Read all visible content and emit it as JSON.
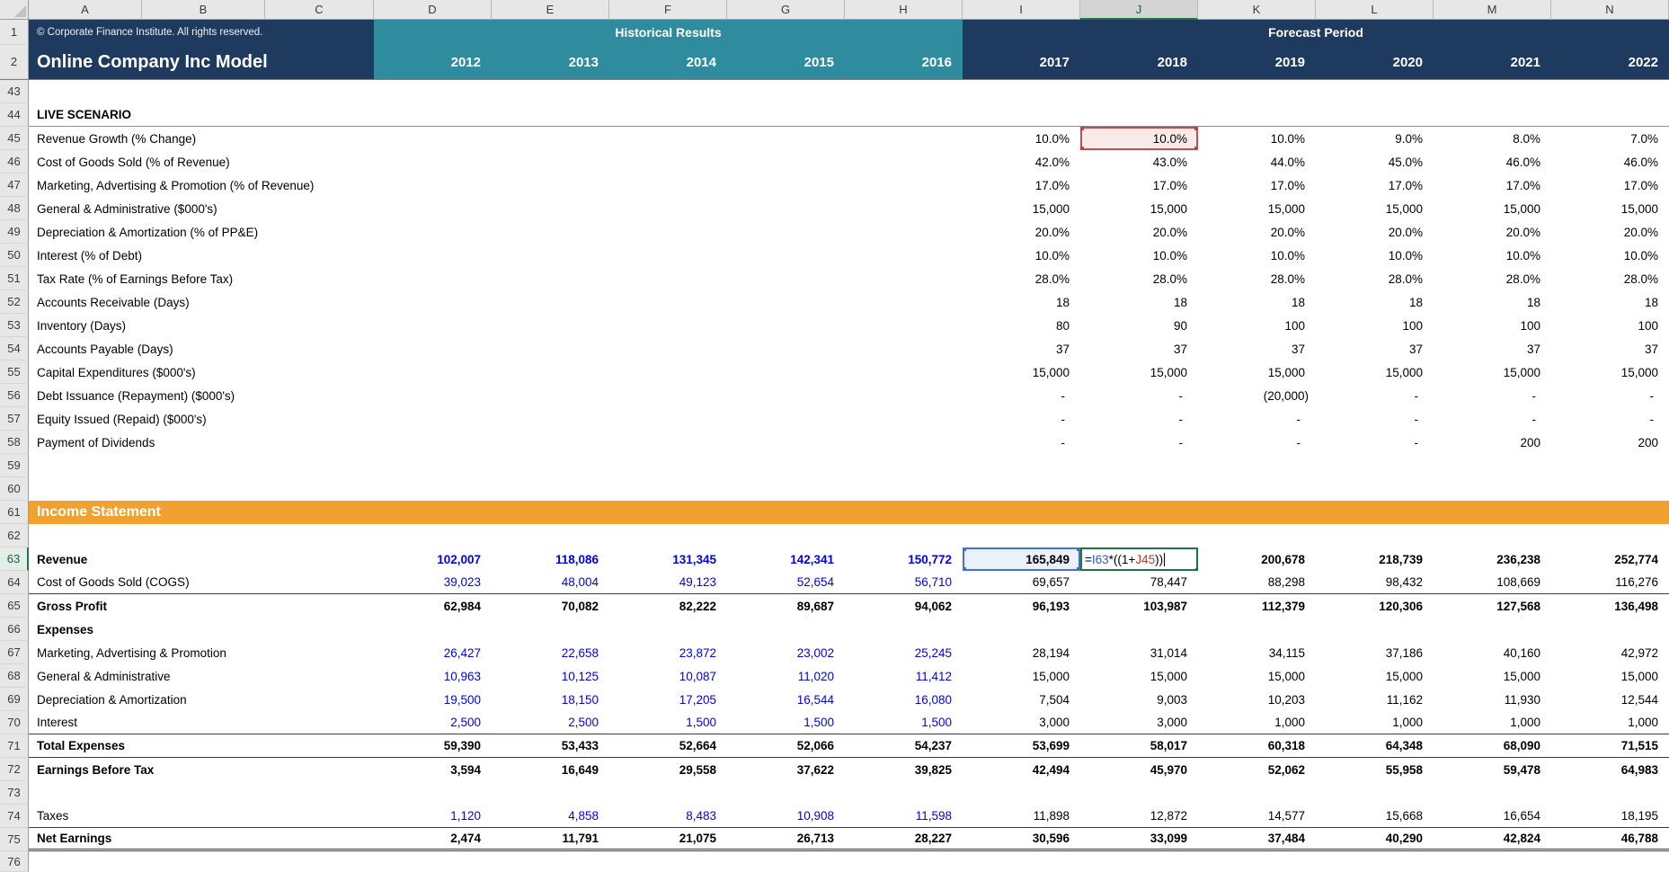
{
  "columns": [
    "A",
    "B",
    "C",
    "D",
    "E",
    "F",
    "G",
    "H",
    "I",
    "J",
    "K",
    "L",
    "M",
    "N"
  ],
  "banner": {
    "row1": {
      "num": "1",
      "copyright": "© Corporate Finance Institute. All rights reserved.",
      "historical_label": "Historical Results",
      "forecast_label": "Forecast Period"
    },
    "row2": {
      "num": "2",
      "title": "Online Company Inc Model",
      "historical_years": [
        "2012",
        "2013",
        "2014",
        "2015",
        "2016"
      ],
      "forecast_years": [
        "2017",
        "2018",
        "2019",
        "2020",
        "2021",
        "2022"
      ]
    }
  },
  "selection": {
    "active_column": "J",
    "active_row": "63",
    "ref_red_cell": "J45",
    "ref_blue_cell": "I63",
    "formula": {
      "parts": [
        {
          "text": "=",
          "color": "#000000"
        },
        {
          "text": "I63",
          "color": "#2E58C8"
        },
        {
          "text": "*((1+",
          "color": "#000000"
        },
        {
          "text": "J45",
          "color": "#C0392B"
        },
        {
          "text": "))",
          "color": "#000000"
        }
      ]
    }
  },
  "colors": {
    "navy": "#1E3A5F",
    "teal": "#2E8C9E",
    "orange": "#F0A12F",
    "input_blue": "#0000EE",
    "edit_border_green": "#217346",
    "ref_red_border": "#C0504D",
    "ref_blue_border": "#4472C4"
  },
  "rows": [
    {
      "num": "43",
      "type": "blank"
    },
    {
      "num": "44",
      "type": "label",
      "label": "LIVE SCENARIO",
      "bold": true,
      "border": "grey"
    },
    {
      "num": "45",
      "type": "data",
      "label": "Revenue Growth (% Change)",
      "fore": [
        "10.0%",
        "10.0%",
        "10.0%",
        "9.0%",
        "8.0%",
        "7.0%"
      ],
      "highlightCol": 1
    },
    {
      "num": "46",
      "type": "data",
      "label": "Cost of Goods Sold (% of Revenue)",
      "fore": [
        "42.0%",
        "43.0%",
        "44.0%",
        "45.0%",
        "46.0%",
        "46.0%"
      ]
    },
    {
      "num": "47",
      "type": "data",
      "label": "Marketing, Advertising & Promotion (% of Revenue)",
      "fore": [
        "17.0%",
        "17.0%",
        "17.0%",
        "17.0%",
        "17.0%",
        "17.0%"
      ]
    },
    {
      "num": "48",
      "type": "data",
      "label": "General & Administrative ($000's)",
      "fore": [
        "15,000",
        "15,000",
        "15,000",
        "15,000",
        "15,000",
        "15,000"
      ]
    },
    {
      "num": "49",
      "type": "data",
      "label": "Depreciation & Amortization (% of PP&E)",
      "fore": [
        "20.0%",
        "20.0%",
        "20.0%",
        "20.0%",
        "20.0%",
        "20.0%"
      ]
    },
    {
      "num": "50",
      "type": "data",
      "label": "Interest (% of Debt)",
      "fore": [
        "10.0%",
        "10.0%",
        "10.0%",
        "10.0%",
        "10.0%",
        "10.0%"
      ]
    },
    {
      "num": "51",
      "type": "data",
      "label": "Tax Rate (% of Earnings Before Tax)",
      "fore": [
        "28.0%",
        "28.0%",
        "28.0%",
        "28.0%",
        "28.0%",
        "28.0%"
      ]
    },
    {
      "num": "52",
      "type": "data",
      "label": "Accounts Receivable (Days)",
      "fore": [
        "18",
        "18",
        "18",
        "18",
        "18",
        "18"
      ]
    },
    {
      "num": "53",
      "type": "data",
      "label": "Inventory (Days)",
      "fore": [
        "80",
        "90",
        "100",
        "100",
        "100",
        "100"
      ]
    },
    {
      "num": "54",
      "type": "data",
      "label": "Accounts Payable (Days)",
      "fore": [
        "37",
        "37",
        "37",
        "37",
        "37",
        "37"
      ]
    },
    {
      "num": "55",
      "type": "data",
      "label": "Capital Expenditures ($000's)",
      "fore": [
        "15,000",
        "15,000",
        "15,000",
        "15,000",
        "15,000",
        "15,000"
      ]
    },
    {
      "num": "56",
      "type": "data",
      "label": "Debt Issuance (Repayment) ($000's)",
      "fore": [
        "-",
        "-",
        "(20,000)",
        "-",
        "-",
        "-"
      ]
    },
    {
      "num": "57",
      "type": "data",
      "label": "Equity Issued (Repaid) ($000's)",
      "fore": [
        "-",
        "-",
        "-",
        "-",
        "-",
        "-"
      ]
    },
    {
      "num": "58",
      "type": "data",
      "label": "Payment of Dividends",
      "fore": [
        "-",
        "-",
        "-",
        "-",
        "200",
        "200"
      ]
    },
    {
      "num": "59",
      "type": "blank"
    },
    {
      "num": "60",
      "type": "blank"
    },
    {
      "num": "61",
      "type": "section",
      "label": "Income Statement"
    },
    {
      "num": "62",
      "type": "blank"
    },
    {
      "num": "63",
      "type": "data",
      "label": "Revenue",
      "bold": true,
      "hist": [
        "102,007",
        "118,086",
        "131,345",
        "142,341",
        "150,772"
      ],
      "histStyle": "blue-bold",
      "fore": [
        "165,849",
        null,
        "200,678",
        "218,739",
        "236,238",
        "252,774"
      ],
      "foreStyle": "bold",
      "formulaCol": 1,
      "refBlueCol": 0
    },
    {
      "num": "64",
      "type": "data",
      "label": "Cost of Goods Sold (COGS)",
      "hist": [
        "39,023",
        "48,004",
        "49,123",
        "52,654",
        "56,710"
      ],
      "histStyle": "blue",
      "fore": [
        "69,657",
        "78,447",
        "88,298",
        "98,432",
        "108,669",
        "116,276"
      ],
      "border": "single"
    },
    {
      "num": "65",
      "type": "data",
      "label": "Gross Profit",
      "bold": true,
      "hist": [
        "62,984",
        "70,082",
        "82,222",
        "89,687",
        "94,062"
      ],
      "histStyle": "bold",
      "fore": [
        "96,193",
        "103,987",
        "112,379",
        "120,306",
        "127,568",
        "136,498"
      ],
      "foreStyle": "bold"
    },
    {
      "num": "66",
      "type": "label",
      "label": "Expenses",
      "bold": true
    },
    {
      "num": "67",
      "type": "data",
      "label": "Marketing, Advertising & Promotion",
      "hist": [
        "26,427",
        "22,658",
        "23,872",
        "23,002",
        "25,245"
      ],
      "histStyle": "blue",
      "fore": [
        "28,194",
        "31,014",
        "34,115",
        "37,186",
        "40,160",
        "42,972"
      ]
    },
    {
      "num": "68",
      "type": "data",
      "label": "General & Administrative",
      "hist": [
        "10,963",
        "10,125",
        "10,087",
        "11,020",
        "11,412"
      ],
      "histStyle": "blue",
      "fore": [
        "15,000",
        "15,000",
        "15,000",
        "15,000",
        "15,000",
        "15,000"
      ]
    },
    {
      "num": "69",
      "type": "data",
      "label": "Depreciation & Amortization",
      "hist": [
        "19,500",
        "18,150",
        "17,205",
        "16,544",
        "16,080"
      ],
      "histStyle": "blue",
      "fore": [
        "7,504",
        "9,003",
        "10,203",
        "11,162",
        "11,930",
        "12,544"
      ]
    },
    {
      "num": "70",
      "type": "data",
      "label": "Interest",
      "hist": [
        "2,500",
        "2,500",
        "1,500",
        "1,500",
        "1,500"
      ],
      "histStyle": "blue",
      "fore": [
        "3,000",
        "3,000",
        "1,000",
        "1,000",
        "1,000",
        "1,000"
      ],
      "border": "single"
    },
    {
      "num": "71",
      "type": "data",
      "label": "Total Expenses",
      "bold": true,
      "hist": [
        "59,390",
        "53,433",
        "52,664",
        "52,066",
        "54,237"
      ],
      "histStyle": "bold",
      "fore": [
        "53,699",
        "58,017",
        "60,318",
        "64,348",
        "68,090",
        "71,515"
      ],
      "foreStyle": "bold",
      "border": "single"
    },
    {
      "num": "72",
      "type": "data",
      "label": "Earnings Before Tax",
      "bold": true,
      "hist": [
        "3,594",
        "16,649",
        "29,558",
        "37,622",
        "39,825"
      ],
      "histStyle": "bold",
      "fore": [
        "42,494",
        "45,970",
        "52,062",
        "55,958",
        "59,478",
        "64,983"
      ],
      "foreStyle": "bold"
    },
    {
      "num": "73",
      "type": "blank"
    },
    {
      "num": "74",
      "type": "data",
      "label": "Taxes",
      "hist": [
        "1,120",
        "4,858",
        "8,483",
        "10,908",
        "11,598"
      ],
      "histStyle": "blue",
      "fore": [
        "11,898",
        "12,872",
        "14,577",
        "15,668",
        "16,654",
        "18,195"
      ],
      "border": "single"
    },
    {
      "num": "75",
      "type": "data",
      "label": "Net Earnings",
      "bold": true,
      "hist": [
        "2,474",
        "11,791",
        "21,075",
        "26,713",
        "28,227"
      ],
      "histStyle": "bold",
      "fore": [
        "30,596",
        "33,099",
        "37,484",
        "40,290",
        "42,824",
        "46,788"
      ],
      "foreStyle": "bold",
      "border": "double"
    },
    {
      "num": "76",
      "type": "blank"
    }
  ]
}
